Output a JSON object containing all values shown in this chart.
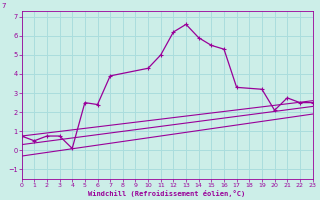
{
  "xlabel": "Windchill (Refroidissement éolien,°C)",
  "background_color": "#cceee8",
  "grid_color": "#aadddd",
  "line_color": "#990099",
  "xlim": [
    0,
    23
  ],
  "ylim": [
    -1.5,
    7.3
  ],
  "xticks": [
    0,
    1,
    2,
    3,
    4,
    5,
    6,
    7,
    8,
    9,
    10,
    11,
    12,
    13,
    14,
    15,
    16,
    17,
    18,
    19,
    20,
    21,
    22,
    23
  ],
  "yticks": [
    -1,
    0,
    1,
    2,
    3,
    4,
    5,
    6,
    7
  ],
  "series1_x": [
    0,
    1,
    2,
    3,
    4,
    5,
    6,
    7,
    10,
    11,
    12,
    13,
    14,
    15,
    16,
    17,
    19,
    20,
    21,
    22,
    23
  ],
  "series1_y": [
    0.75,
    0.5,
    0.75,
    0.75,
    0.1,
    2.5,
    2.4,
    3.9,
    4.3,
    5.0,
    6.2,
    6.6,
    5.9,
    5.5,
    5.3,
    3.3,
    3.2,
    2.1,
    2.75,
    2.5,
    2.5
  ],
  "line1_x": [
    0,
    23
  ],
  "line1_y": [
    0.75,
    2.6
  ],
  "line2_x": [
    0,
    23
  ],
  "line2_y": [
    0.3,
    2.3
  ],
  "line3_x": [
    0,
    23
  ],
  "line3_y": [
    -0.3,
    1.9
  ]
}
